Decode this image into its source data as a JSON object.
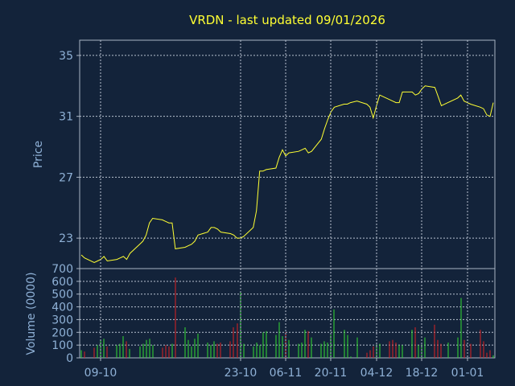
{
  "chart_data": [
    {
      "type": "line",
      "title": "VRDN - last updated 09/01/2026",
      "ylabel": "Price",
      "ylim": [
        21,
        36
      ],
      "yticks": [
        "35",
        "31",
        "27",
        "23"
      ],
      "grid": true,
      "line_color": "#ffff33",
      "x": [
        "2025-09-04",
        "2025-09-05",
        "2025-09-08",
        "2025-09-09",
        "2025-09-10",
        "2025-09-11",
        "2025-09-12",
        "2025-09-15",
        "2025-09-16",
        "2025-09-17",
        "2025-09-18",
        "2025-09-19",
        "2025-09-22",
        "2025-09-23",
        "2025-09-24",
        "2025-09-25",
        "2025-09-26",
        "2025-09-29",
        "2025-09-30",
        "2025-10-01",
        "2025-10-02",
        "2025-10-03",
        "2025-10-06",
        "2025-10-07",
        "2025-10-08",
        "2025-10-09",
        "2025-10-10",
        "2025-10-13",
        "2025-10-14",
        "2025-10-15",
        "2025-10-16",
        "2025-10-17",
        "2025-10-20",
        "2025-10-21",
        "2025-10-22",
        "2025-10-23",
        "2025-10-24",
        "2025-10-27",
        "2025-10-28",
        "2025-10-29",
        "2025-10-30",
        "2025-10-31",
        "2025-11-03",
        "2025-11-04",
        "2025-11-05",
        "2025-11-06",
        "2025-11-07",
        "2025-11-10",
        "2025-11-11",
        "2025-11-12",
        "2025-11-13",
        "2025-11-14",
        "2025-11-17",
        "2025-11-18",
        "2025-11-19",
        "2025-11-20",
        "2025-11-21",
        "2025-11-24",
        "2025-11-25",
        "2025-11-26",
        "2025-11-28",
        "2025-12-01",
        "2025-12-02",
        "2025-12-03",
        "2025-12-04",
        "2025-12-05",
        "2025-12-08",
        "2025-12-09",
        "2025-12-10",
        "2025-12-11",
        "2025-12-12",
        "2025-12-15",
        "2025-12-16",
        "2025-12-17",
        "2025-12-18",
        "2025-12-19",
        "2025-12-22",
        "2025-12-23",
        "2025-12-24",
        "2025-12-26",
        "2025-12-29",
        "2025-12-30",
        "2025-12-31",
        "2026-01-02",
        "2026-01-05",
        "2026-01-06",
        "2026-01-07",
        "2026-01-08",
        "2026-01-09"
      ],
      "series": [
        {
          "values": [
            21.9,
            21.7,
            21.4,
            21.5,
            21.6,
            21.8,
            21.5,
            21.6,
            21.7,
            21.8,
            21.6,
            22.0,
            22.6,
            22.8,
            23.2,
            24.0,
            24.3,
            24.2,
            24.1,
            24.0,
            24.0,
            22.3,
            22.4,
            22.5,
            22.6,
            22.8,
            23.2,
            23.4,
            23.7,
            23.7,
            23.6,
            23.4,
            23.3,
            23.2,
            23.0,
            23.0,
            23.1,
            23.7,
            24.8,
            27.4,
            27.4,
            27.5,
            27.6,
            28.3,
            28.8,
            28.4,
            28.6,
            28.7,
            28.8,
            28.9,
            28.6,
            28.7,
            29.5,
            30.2,
            30.8,
            31.3,
            31.6,
            31.8,
            31.8,
            31.9,
            32.0,
            31.8,
            31.6,
            30.9,
            31.7,
            32.4,
            32.1,
            32.0,
            31.9,
            31.9,
            32.6,
            32.6,
            32.4,
            32.5,
            32.8,
            33.0,
            32.9,
            32.3,
            31.7,
            31.9,
            32.2,
            32.4,
            32.0,
            31.8,
            31.6,
            31.5,
            31.1,
            31.0,
            31.9
          ]
        }
      ]
    },
    {
      "type": "bar",
      "ylabel": "Volume (0000)",
      "ylim": [
        0,
        700
      ],
      "yticks": [
        "700",
        "600",
        "500",
        "400",
        "300",
        "200",
        "100",
        "0"
      ],
      "grid": true,
      "up_color": "#33dd33",
      "down_color": "#dd2222",
      "x_tick_labels": [
        "09-10",
        "23-10",
        "06-11",
        "20-11",
        "04-12",
        "18-12",
        "01-01"
      ],
      "x_tick_dates": [
        "2025-09-10",
        "2025-10-23",
        "2025-11-06",
        "2025-11-20",
        "2025-12-04",
        "2025-12-18",
        "2026-01-01"
      ],
      "values": [
        60,
        50,
        80,
        100,
        140,
        150,
        90,
        100,
        110,
        170,
        130,
        70,
        90,
        110,
        140,
        150,
        100,
        80,
        100,
        90,
        110,
        630,
        240,
        140,
        90,
        150,
        190,
        120,
        100,
        130,
        110,
        120,
        130,
        240,
        270,
        520,
        110,
        90,
        120,
        100,
        200,
        210,
        180,
        280,
        170,
        200,
        140,
        110,
        120,
        220,
        210,
        160,
        110,
        130,
        120,
        180,
        380,
        220,
        180,
        10,
        160,
        40,
        60,
        90,
        100,
        110,
        130,
        140,
        120,
        100,
        100,
        220,
        240,
        100,
        100,
        160,
        260,
        140,
        110,
        120,
        160,
        470,
        140,
        110,
        220,
        130,
        40,
        60,
        20
      ]
    }
  ]
}
